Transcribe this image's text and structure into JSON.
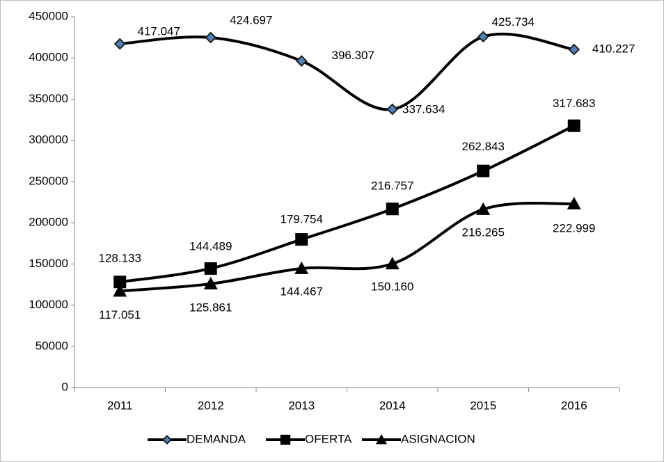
{
  "chart_data": {
    "type": "line",
    "smooth": true,
    "categories": [
      "2011",
      "2012",
      "2013",
      "2014",
      "2015",
      "2016"
    ],
    "series": [
      {
        "name": "DEMANDA",
        "color": "#000000",
        "marker": "diamond",
        "marker_color": "#4f81bd",
        "values": [
          417047,
          424697,
          396307,
          337634,
          425734,
          410227
        ],
        "value_labels": [
          "417.047",
          "424.697",
          "396.307",
          "337.634",
          "425.734",
          "410.227"
        ]
      },
      {
        "name": "OFERTA",
        "color": "#000000",
        "marker": "square",
        "marker_color": "#000000",
        "values": [
          128133,
          144489,
          179754,
          216757,
          262843,
          317683
        ],
        "value_labels": [
          "128.133",
          "144.489",
          "179.754",
          "216.757",
          "262.843",
          "317.683"
        ]
      },
      {
        "name": "ASIGNACION",
        "color": "#000000",
        "marker": "triangle",
        "marker_color": "#000000",
        "values": [
          117051,
          125861,
          144467,
          150160,
          216265,
          222999
        ],
        "value_labels": [
          "117.051",
          "125.861",
          "144.467",
          "150.160",
          "216.265",
          "222.999"
        ]
      }
    ],
    "ylim": [
      0,
      450000
    ],
    "yticks": [
      0,
      50000,
      100000,
      150000,
      200000,
      250000,
      300000,
      350000,
      400000,
      450000
    ],
    "grid": false,
    "legend": "bottom"
  }
}
